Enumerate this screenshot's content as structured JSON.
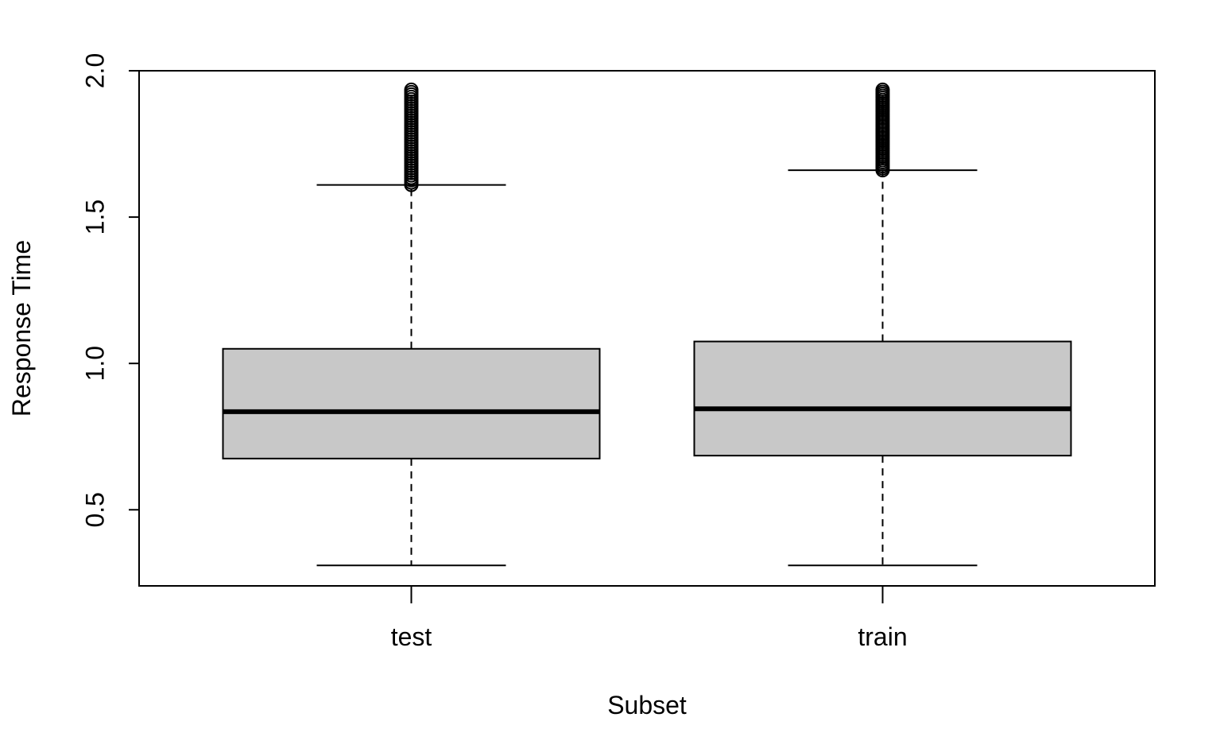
{
  "chart_data": {
    "type": "boxplot",
    "title": "",
    "xlabel": "Subset",
    "ylabel": "Response Time",
    "ylim": [
      0.24,
      2.0
    ],
    "yticks": [
      0.5,
      1.0,
      1.5,
      2.0
    ],
    "ytick_labels": [
      "0.5",
      "1.0",
      "1.5",
      "2.0"
    ],
    "grid": false,
    "box_fill": "#c8c8c8",
    "stroke_color": "#000000",
    "categories": [
      "test",
      "train"
    ],
    "boxes": [
      {
        "name": "test",
        "whisker_low": 0.31,
        "q1": 0.675,
        "median": 0.835,
        "q3": 1.05,
        "whisker_high": 1.61,
        "outliers_range": [
          1.61,
          1.935
        ]
      },
      {
        "name": "train",
        "whisker_low": 0.31,
        "q1": 0.685,
        "median": 0.845,
        "q3": 1.075,
        "whisker_high": 1.66,
        "outliers_range": [
          1.66,
          1.935
        ]
      }
    ]
  }
}
